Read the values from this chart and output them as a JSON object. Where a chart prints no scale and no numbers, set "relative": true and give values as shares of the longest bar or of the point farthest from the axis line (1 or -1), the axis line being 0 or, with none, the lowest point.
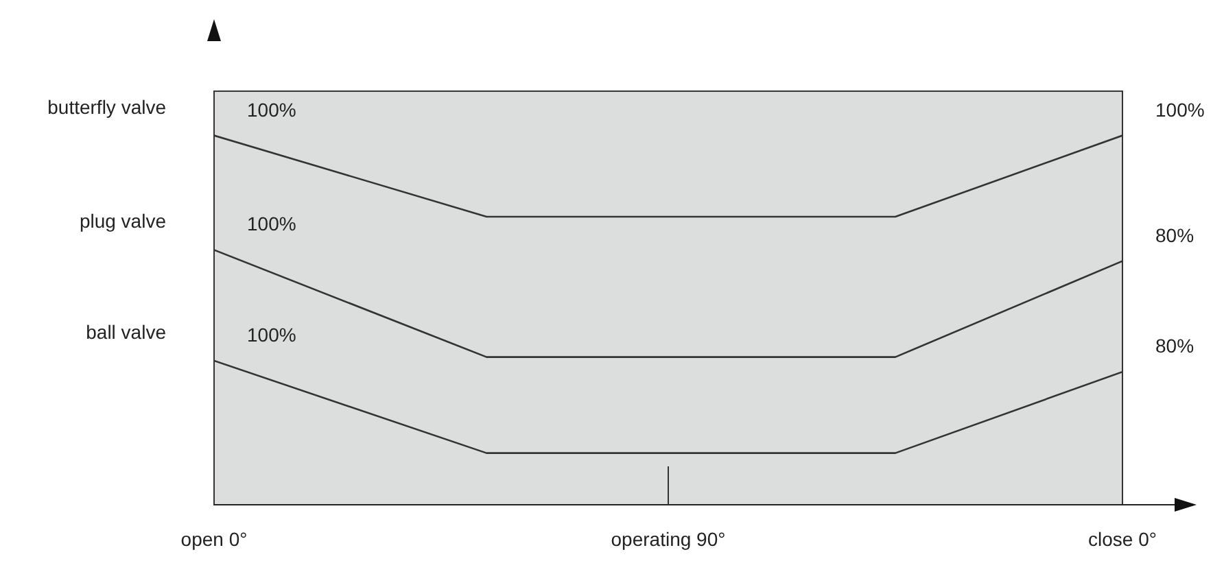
{
  "chart_data": {
    "type": "line",
    "relative": true,
    "categories": [
      "open 0°",
      null,
      null,
      null,
      null,
      null,
      null,
      null,
      null,
      null,
      "operating 90°",
      null,
      null,
      null,
      null,
      null,
      null,
      null,
      null,
      null,
      "close 0°"
    ],
    "marker": "none",
    "line_style": "solid",
    "series": [
      {
        "name": "butterfly valve",
        "color": "#333333",
        "values": [
          1.0,
          null,
          null,
          null,
          null,
          null,
          0.78,
          null,
          null,
          null,
          null,
          null,
          null,
          null,
          null,
          0.78,
          null,
          null,
          null,
          null,
          1.0
        ]
      },
      {
        "name": "plug valve",
        "color": "#333333",
        "values": [
          0.69,
          null,
          null,
          null,
          null,
          null,
          0.4,
          null,
          null,
          null,
          null,
          null,
          null,
          null,
          null,
          0.4,
          null,
          null,
          null,
          null,
          0.66
        ]
      },
      {
        "name": "ball valve",
        "color": "#333333",
        "values": [
          0.39,
          null,
          null,
          null,
          null,
          null,
          0.14,
          null,
          null,
          null,
          null,
          null,
          null,
          null,
          null,
          0.14,
          null,
          null,
          null,
          null,
          0.36
        ]
      }
    ],
    "annotations": [
      {
        "text": "100%",
        "x": "open 0°",
        "y": 1.0
      },
      {
        "text": "100%",
        "x": "close 0°",
        "y": 1.0
      },
      {
        "text": "100%",
        "x": "open 0°",
        "y": 0.69
      },
      {
        "text": "80%",
        "x": "close 0°",
        "y": 0.66
      },
      {
        "text": "100%",
        "x": "open 0°",
        "y": 0.39
      },
      {
        "text": "80%",
        "x": "close 0°",
        "y": 0.36
      }
    ]
  }
}
